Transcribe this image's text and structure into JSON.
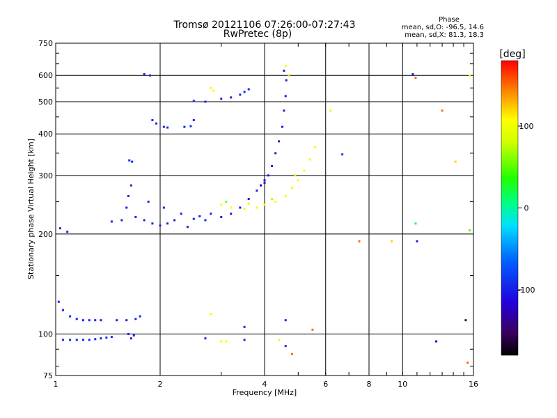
{
  "chart_data": {
    "type": "scatter",
    "title": "Tromsø 20121106 07:26:00-07:27:43",
    "subtitle": "RwPretec (8p)",
    "xlabel": "Frequency [MHz]",
    "ylabel": "Stationary phase Virtual Height [km]",
    "x_scale": "log",
    "y_scale": "log",
    "xlim": [
      1,
      16
    ],
    "ylim": [
      75,
      750
    ],
    "x_ticks": [
      1,
      2,
      4,
      6,
      8,
      10,
      16
    ],
    "y_ticks": [
      75,
      100,
      200,
      300,
      400,
      500,
      600,
      750
    ],
    "grid": true,
    "phase_stats": {
      "heading": "Phase",
      "line_o": "mean, sd,O: -96.5, 14.6",
      "line_x": "mean, sd,X:  81.3, 18.3"
    },
    "colorbar": {
      "label": "[deg]",
      "tick_labels": [
        "100",
        "0",
        "-100"
      ],
      "tick_values": [
        100,
        0,
        -100
      ],
      "range": [
        -180,
        180
      ]
    },
    "series": [
      {
        "values": [
          [
            1.05,
            96,
            -95
          ],
          [
            1.1,
            96,
            -95
          ],
          [
            1.15,
            96,
            -95
          ],
          [
            1.2,
            96,
            -95
          ],
          [
            1.25,
            96,
            -95
          ],
          [
            1.3,
            96.5,
            -95
          ],
          [
            1.35,
            97,
            -95
          ],
          [
            1.4,
            97.5,
            -95
          ],
          [
            1.45,
            98,
            -95
          ],
          [
            1.02,
            125,
            -95
          ],
          [
            1.05,
            118,
            -95
          ],
          [
            1.1,
            113,
            -95
          ],
          [
            1.15,
            111,
            -95
          ],
          [
            1.2,
            110,
            -95
          ],
          [
            1.25,
            110,
            -95
          ],
          [
            1.3,
            110,
            -95
          ],
          [
            1.35,
            110,
            -95
          ],
          [
            1.5,
            110,
            -95
          ],
          [
            1.6,
            110,
            -95
          ],
          [
            1.7,
            111,
            -95
          ],
          [
            1.75,
            113,
            -95
          ],
          [
            1.62,
            100,
            -95
          ],
          [
            1.65,
            97,
            -95
          ],
          [
            1.68,
            99,
            -95
          ],
          [
            1.03,
            208,
            -95
          ],
          [
            1.08,
            203,
            -95
          ],
          [
            1.45,
            218,
            -95
          ],
          [
            1.55,
            220,
            -95
          ],
          [
            1.6,
            240,
            -95
          ],
          [
            1.62,
            260,
            -95
          ],
          [
            1.65,
            280,
            -95
          ],
          [
            1.63,
            333,
            -95
          ],
          [
            1.66,
            330,
            -95
          ],
          [
            1.7,
            225,
            -95
          ],
          [
            1.8,
            220,
            -95
          ],
          [
            1.85,
            250,
            -95
          ],
          [
            1.9,
            215,
            -95
          ],
          [
            2.0,
            212,
            -95
          ],
          [
            2.05,
            240,
            -95
          ],
          [
            2.1,
            215,
            -95
          ],
          [
            2.2,
            220,
            -95
          ],
          [
            2.3,
            230,
            -95
          ],
          [
            2.4,
            210,
            -95
          ],
          [
            2.5,
            222,
            -95
          ],
          [
            2.6,
            226,
            -95
          ],
          [
            2.7,
            220,
            -95
          ],
          [
            2.8,
            230,
            -95
          ],
          [
            1.9,
            440,
            -95
          ],
          [
            1.95,
            430,
            -95
          ],
          [
            2.05,
            420,
            -95
          ],
          [
            2.1,
            418,
            -95
          ],
          [
            2.35,
            420,
            -95
          ],
          [
            2.45,
            422,
            -95
          ],
          [
            2.5,
            440,
            -95
          ],
          [
            1.8,
            605,
            -95
          ],
          [
            1.87,
            600,
            -95
          ],
          [
            2.5,
            503,
            -95
          ],
          [
            2.7,
            500,
            -95
          ],
          [
            3.0,
            510,
            -95
          ],
          [
            3.2,
            515,
            -95
          ],
          [
            3.4,
            525,
            -95
          ],
          [
            3.5,
            535,
            -95
          ],
          [
            3.6,
            545,
            -95
          ],
          [
            3.0,
            225,
            -100
          ],
          [
            3.2,
            230,
            -100
          ],
          [
            3.4,
            240,
            -100
          ],
          [
            3.6,
            255,
            -100
          ],
          [
            3.8,
            270,
            -100
          ],
          [
            4.0,
            285,
            -100
          ],
          [
            4.1,
            300,
            -100
          ],
          [
            4.2,
            320,
            -100
          ],
          [
            4.3,
            350,
            -100
          ],
          [
            4.4,
            380,
            -100
          ],
          [
            4.5,
            420,
            -100
          ],
          [
            4.55,
            470,
            -100
          ],
          [
            4.6,
            520,
            -100
          ],
          [
            4.62,
            580,
            -100
          ],
          [
            4.55,
            620,
            -100
          ],
          [
            3.9,
            280,
            -110
          ],
          [
            4.0,
            290,
            -110
          ],
          [
            3.0,
            245,
            110
          ],
          [
            3.2,
            240,
            110
          ],
          [
            3.5,
            238,
            110
          ],
          [
            3.8,
            240,
            110
          ],
          [
            4.0,
            245,
            110
          ],
          [
            4.3,
            250,
            110
          ],
          [
            4.6,
            260,
            110
          ],
          [
            4.8,
            275,
            110
          ],
          [
            5.0,
            290,
            110
          ],
          [
            5.2,
            310,
            110
          ],
          [
            5.4,
            335,
            110
          ],
          [
            5.6,
            365,
            110
          ],
          [
            3.1,
            250,
            60
          ],
          [
            3.6,
            247,
            90
          ],
          [
            4.2,
            255,
            75
          ],
          [
            4.9,
            300,
            80
          ],
          [
            4.7,
            600,
            120
          ],
          [
            4.6,
            640,
            110
          ],
          [
            2.8,
            550,
            110
          ],
          [
            2.85,
            540,
            110
          ],
          [
            3.0,
            95,
            105
          ],
          [
            3.1,
            95,
            105
          ],
          [
            2.7,
            97,
            -95
          ],
          [
            3.5,
            96,
            -95
          ],
          [
            4.4,
            96,
            100
          ],
          [
            4.6,
            92,
            -95
          ],
          [
            5.5,
            103,
            150
          ],
          [
            4.8,
            87,
            150
          ],
          [
            2.8,
            115,
            110
          ],
          [
            3.5,
            105,
            -95
          ],
          [
            4.6,
            110,
            -95
          ],
          [
            6.7,
            347,
            -80
          ],
          [
            6.2,
            470,
            110
          ],
          [
            7.5,
            190,
            150
          ],
          [
            9.3,
            190,
            120
          ],
          [
            11.0,
            190,
            -95
          ],
          [
            10.7,
            605,
            -95
          ],
          [
            10.9,
            590,
            150
          ],
          [
            12.5,
            95,
            -120
          ],
          [
            13.0,
            470,
            150
          ],
          [
            14.2,
            330,
            120
          ],
          [
            15.2,
            110,
            -150
          ],
          [
            15.6,
            205,
            50
          ],
          [
            15.4,
            82,
            150
          ],
          [
            15.6,
            600,
            110
          ],
          [
            10.9,
            215,
            20
          ]
        ]
      }
    ]
  }
}
